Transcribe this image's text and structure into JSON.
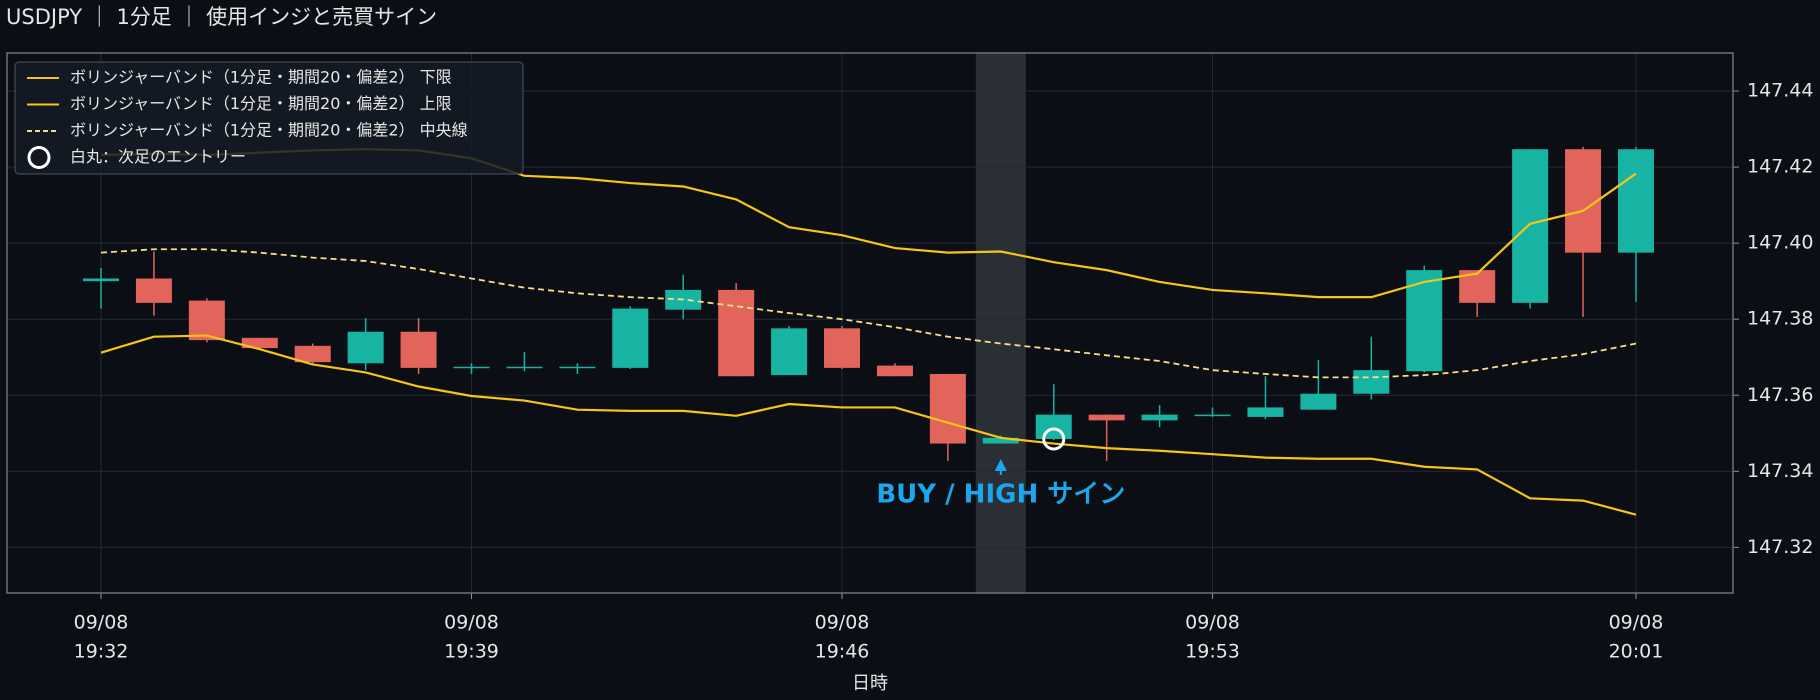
{
  "chart_data": {
    "type": "candlestick",
    "title": "USDJPY ｜ 1分足 ｜ 使用インジと売買サイン",
    "x_label": "日時",
    "x": [
      "19:32",
      "19:33",
      "19:34",
      "19:35",
      "19:36",
      "19:37",
      "19:38",
      "19:39",
      "19:40",
      "19:41",
      "19:42",
      "19:43",
      "19:44",
      "19:45",
      "19:46",
      "19:47",
      "19:48",
      "19:49",
      "19:50",
      "19:51",
      "19:52",
      "19:53",
      "19:54",
      "19:55",
      "19:56",
      "19:57",
      "19:58",
      "19:59",
      "20:00",
      "20:01"
    ],
    "open": [
      147.39,
      147.3907,
      147.3849,
      147.3751,
      147.373,
      147.3684,
      147.3767,
      147.3673,
      147.3673,
      147.3673,
      147.3672,
      147.3825,
      147.3877,
      147.3653,
      147.3776,
      147.3678,
      147.3656,
      147.3473,
      147.3485,
      147.3549,
      147.3534,
      147.3547,
      147.3543,
      147.3562,
      147.3604,
      147.3663,
      147.3929,
      147.3843,
      147.4247,
      147.3975
    ],
    "high": [
      147.3935,
      147.3978,
      147.3855,
      147.3751,
      147.3736,
      147.3803,
      147.3803,
      147.3684,
      147.3714,
      147.3684,
      147.3834,
      147.3917,
      147.3895,
      147.3782,
      147.3782,
      147.3684,
      147.3656,
      147.3494,
      147.3629,
      147.3549,
      147.3574,
      147.3568,
      147.365,
      147.3693,
      147.3754,
      147.3941,
      147.3929,
      147.4247,
      147.4253,
      147.4253
    ],
    "low": [
      147.3828,
      147.3809,
      147.3739,
      147.3721,
      147.3684,
      147.3666,
      147.3656,
      147.3656,
      147.3663,
      147.3656,
      147.3669,
      147.38,
      147.365,
      147.3653,
      147.3669,
      147.365,
      147.3427,
      147.3473,
      147.3482,
      147.3427,
      147.3516,
      147.3543,
      147.3537,
      147.3562,
      147.3589,
      147.366,
      147.3806,
      147.3828,
      147.3806,
      147.3846
    ],
    "close": [
      147.3907,
      147.3843,
      147.3745,
      147.3724,
      147.3687,
      147.3767,
      147.3672,
      147.3675,
      147.3675,
      147.3675,
      147.3828,
      147.3877,
      147.365,
      147.3776,
      147.3672,
      147.365,
      147.3473,
      147.3488,
      147.3549,
      147.3534,
      147.3549,
      147.3549,
      147.3568,
      147.3604,
      147.3666,
      147.3929,
      147.3843,
      147.4247,
      147.3975,
      147.4247
    ],
    "up_color": "#17b3a3",
    "down_color": "#e3645a",
    "lines": [
      {
        "name": "ボリンジャーバンド（1分足・期間20・偏差2） 下限",
        "color": "#f5c518",
        "dash": false,
        "values": [
          147.3712,
          147.3754,
          147.3757,
          147.3721,
          147.3681,
          147.366,
          147.3623,
          147.3598,
          147.3586,
          147.3562,
          147.3559,
          147.3559,
          147.3546,
          147.3577,
          147.3568,
          147.3568,
          147.3528,
          147.3488,
          147.3473,
          147.3461,
          147.3454,
          147.3445,
          147.3436,
          147.3433,
          147.3433,
          147.3412,
          147.3405,
          147.3329,
          147.3323,
          147.3286
        ]
      },
      {
        "name": "ボリンジャーバンド（1分足・期間20・偏差2） 上限",
        "color": "#f5c518",
        "dash": false,
        "values": [
          147.4232,
          147.4235,
          147.4232,
          147.4238,
          147.4244,
          147.4247,
          147.4244,
          147.4223,
          147.4177,
          147.4171,
          147.4158,
          147.4149,
          147.4115,
          147.4042,
          147.4021,
          147.3987,
          147.3975,
          147.3978,
          147.395,
          147.3929,
          147.3898,
          147.3877,
          147.3868,
          147.3858,
          147.3858,
          147.3898,
          147.392,
          147.4051,
          147.4085,
          147.4183
        ]
      },
      {
        "name": "ボリンジャーバンド（1分足・期間20・偏差2） 中央線",
        "color": "#f7e08a",
        "dash": true,
        "values": [
          147.3975,
          147.3984,
          147.3984,
          147.3975,
          147.3962,
          147.3953,
          147.3932,
          147.3907,
          147.3883,
          147.3868,
          147.3858,
          147.3852,
          147.3834,
          147.3816,
          147.38,
          147.3779,
          147.3754,
          147.3736,
          147.3721,
          147.3705,
          147.369,
          147.3666,
          147.3656,
          147.3647,
          147.3647,
          147.3653,
          147.3666,
          147.369,
          147.3708,
          147.3736
        ]
      }
    ],
    "entry": {
      "name": "白丸：次足のエントリー",
      "x": "19:50",
      "value": 147.3485,
      "color": "#ffffff"
    },
    "signal": {
      "x": "19:49",
      "label": "BUY / HIGH サイン",
      "color": "#1aa7ec"
    },
    "ylim": [
      147.308,
      147.45
    ],
    "yticks": [
      147.32,
      147.34,
      147.36,
      147.38,
      {
        "value": 147.4,
        "label": "147.40"
      },
      147.42,
      147.44
    ],
    "xticks": [
      {
        "value": "19:32",
        "label": [
          "09/08",
          "19:32"
        ]
      },
      {
        "value": "19:39",
        "label": [
          "09/08",
          "19:39"
        ]
      },
      {
        "value": "19:46",
        "label": [
          "09/08",
          "19:46"
        ]
      },
      {
        "value": "19:53",
        "label": [
          "09/08",
          "19:53"
        ]
      },
      {
        "value": "20:01",
        "label": [
          "09/08",
          "20:01"
        ]
      }
    ],
    "grid": true,
    "legend": "upper left"
  }
}
